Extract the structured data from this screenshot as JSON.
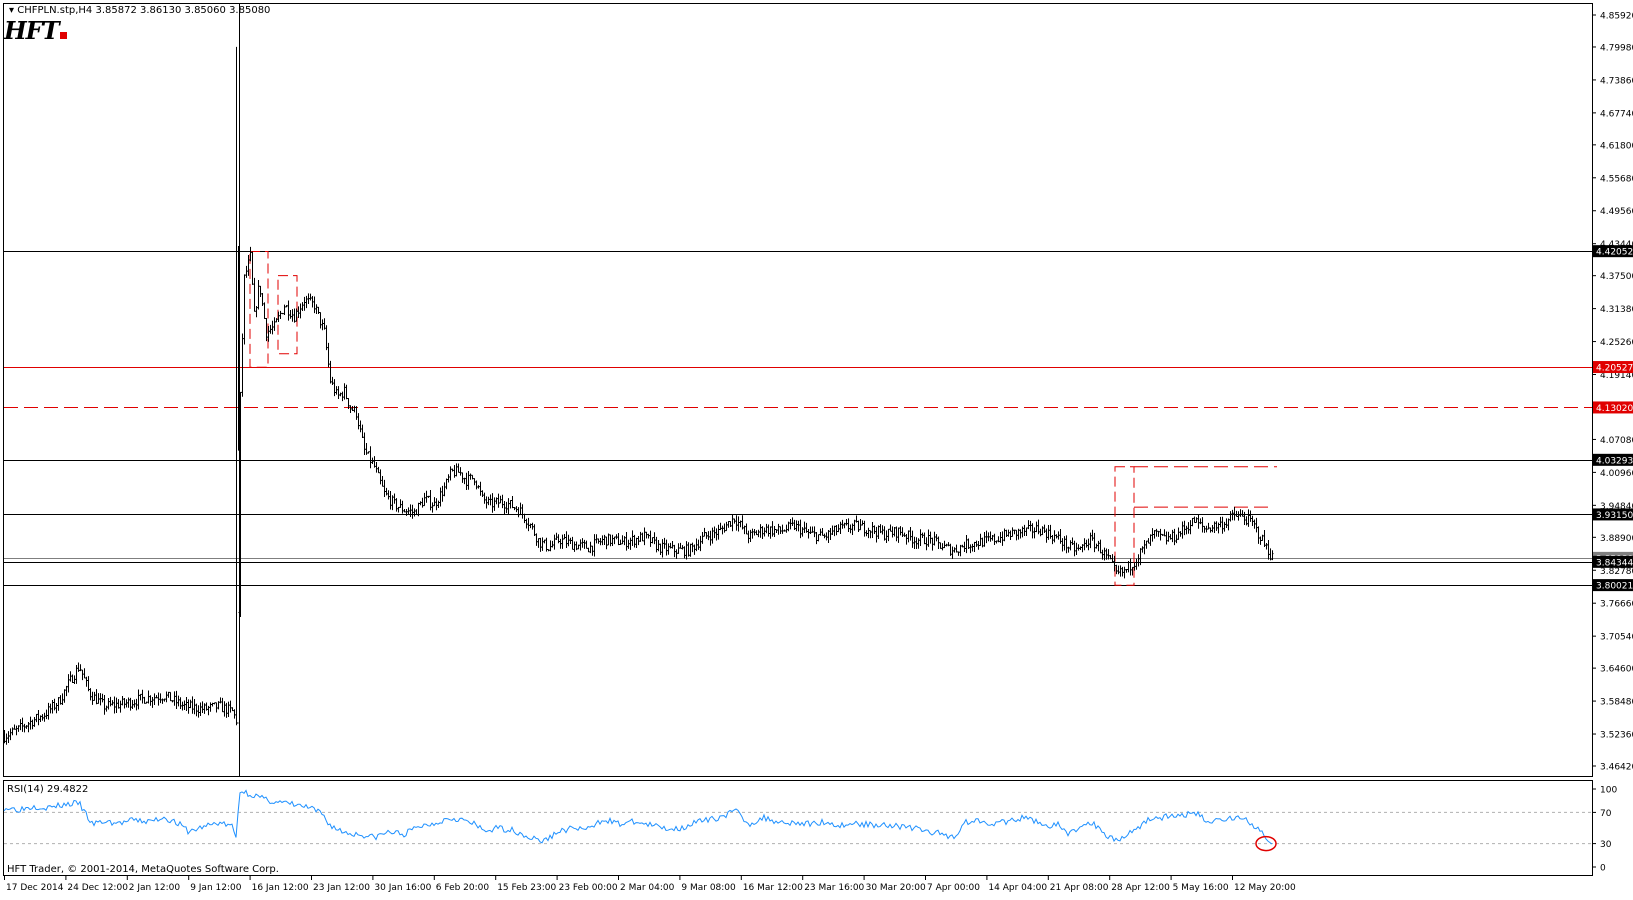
{
  "header": {
    "menu_arrow": "triangle-down-icon",
    "symbol": "CHFPLN.stp,H4",
    "ohlc": "3.85872 3.86130 3.85060 3.85080"
  },
  "logo": {
    "text": "HFT"
  },
  "colors": {
    "candle": "#000000",
    "level_red": "#e00000",
    "level_black": "#000000",
    "rsi_line": "#1e90ff",
    "label_black_bg": "#000000",
    "label_red_bg": "#e00000",
    "label_gray_bg": "#7f7f7f"
  },
  "rsi_panel": {
    "label": "RSI(14) 29.4822",
    "scale_labels": [
      "100",
      "70",
      "30",
      "0"
    ]
  },
  "footer": {
    "copyright": "HFT Trader, © 2001-2014, MetaQuotes Software Corp."
  },
  "chart_data": {
    "type": "candlestick",
    "title": "CHFPLN.stp,H4",
    "ylim": [
      3.4642,
      4.8592
    ],
    "price_axis_labels": [
      "4.85920",
      "4.79980",
      "4.73860",
      "4.67740",
      "4.61800",
      "4.55680",
      "4.49560",
      "4.43440",
      "4.37500",
      "4.31380",
      "4.25260",
      "4.19140",
      "4.07080",
      "4.00960",
      "3.94840",
      "3.88900",
      "3.82780",
      "3.76660",
      "3.70540",
      "3.64600",
      "3.58480",
      "3.52360",
      "3.46420"
    ],
    "time_axis_labels": [
      "17 Dec 2014",
      "24 Dec 12:00",
      "2 Jan 12:00",
      "9 Jan 12:00",
      "16 Jan 12:00",
      "23 Jan 12:00",
      "30 Jan 16:00",
      "6 Feb 20:00",
      "15 Feb 23:00",
      "23 Feb 00:00",
      "2 Mar 04:00",
      "9 Mar 08:00",
      "16 Mar 12:00",
      "23 Mar 16:00",
      "30 Mar 20:00",
      "7 Apr 00:00",
      "14 Apr 04:00",
      "21 Apr 08:00",
      "28 Apr 12:00",
      "5 May 16:00",
      "12 May 20:00"
    ],
    "price_path": [
      [
        0,
        3.52
      ],
      [
        12,
        3.53
      ],
      [
        25,
        3.545
      ],
      [
        40,
        3.56
      ],
      [
        55,
        3.585
      ],
      [
        65,
        3.62
      ],
      [
        75,
        3.65
      ],
      [
        85,
        3.6
      ],
      [
        100,
        3.575
      ],
      [
        120,
        3.58
      ],
      [
        140,
        3.59
      ],
      [
        160,
        3.595
      ],
      [
        180,
        3.575
      ],
      [
        200,
        3.57
      ],
      [
        215,
        3.575
      ],
      [
        228,
        3.565
      ],
      [
        233,
        3.545
      ],
      [
        236,
        4.15
      ],
      [
        240,
        4.37
      ],
      [
        246,
        4.41
      ],
      [
        250,
        4.3
      ],
      [
        255,
        4.36
      ],
      [
        262,
        4.27
      ],
      [
        270,
        4.28
      ],
      [
        280,
        4.32
      ],
      [
        290,
        4.3
      ],
      [
        300,
        4.33
      ],
      [
        310,
        4.32
      ],
      [
        320,
        4.27
      ],
      [
        326,
        4.18
      ],
      [
        333,
        4.15
      ],
      [
        340,
        4.16
      ],
      [
        346,
        4.13
      ],
      [
        352,
        4.12
      ],
      [
        360,
        4.05
      ],
      [
        370,
        4.02
      ],
      [
        380,
        3.97
      ],
      [
        390,
        3.95
      ],
      [
        400,
        3.94
      ],
      [
        410,
        3.935
      ],
      [
        420,
        3.96
      ],
      [
        430,
        3.95
      ],
      [
        440,
        3.98
      ],
      [
        447,
        4.01
      ],
      [
        455,
        4.01
      ],
      [
        462,
        3.995
      ],
      [
        470,
        4.0
      ],
      [
        478,
        3.96
      ],
      [
        486,
        3.95
      ],
      [
        496,
        3.955
      ],
      [
        505,
        3.95
      ],
      [
        515,
        3.94
      ],
      [
        525,
        3.915
      ],
      [
        535,
        3.88
      ],
      [
        545,
        3.87
      ],
      [
        555,
        3.885
      ],
      [
        570,
        3.875
      ],
      [
        585,
        3.87
      ],
      [
        600,
        3.885
      ],
      [
        620,
        3.88
      ],
      [
        640,
        3.89
      ],
      [
        655,
        3.87
      ],
      [
        670,
        3.865
      ],
      [
        685,
        3.865
      ],
      [
        700,
        3.89
      ],
      [
        715,
        3.9
      ],
      [
        730,
        3.925
      ],
      [
        745,
        3.89
      ],
      [
        760,
        3.905
      ],
      [
        775,
        3.9
      ],
      [
        790,
        3.91
      ],
      [
        805,
        3.895
      ],
      [
        820,
        3.89
      ],
      [
        835,
        3.905
      ],
      [
        850,
        3.91
      ],
      [
        865,
        3.905
      ],
      [
        880,
        3.895
      ],
      [
        895,
        3.9
      ],
      [
        910,
        3.885
      ],
      [
        925,
        3.885
      ],
      [
        940,
        3.87
      ],
      [
        950,
        3.865
      ],
      [
        960,
        3.875
      ],
      [
        975,
        3.88
      ],
      [
        990,
        3.885
      ],
      [
        1005,
        3.895
      ],
      [
        1020,
        3.9
      ],
      [
        1035,
        3.905
      ],
      [
        1045,
        3.895
      ],
      [
        1055,
        3.885
      ],
      [
        1065,
        3.87
      ],
      [
        1075,
        3.865
      ],
      [
        1085,
        3.885
      ],
      [
        1095,
        3.87
      ],
      [
        1105,
        3.845
      ],
      [
        1112,
        3.82
      ],
      [
        1120,
        3.825
      ],
      [
        1130,
        3.845
      ],
      [
        1140,
        3.87
      ],
      [
        1150,
        3.895
      ],
      [
        1160,
        3.885
      ],
      [
        1170,
        3.89
      ],
      [
        1180,
        3.905
      ],
      [
        1190,
        3.92
      ],
      [
        1200,
        3.905
      ],
      [
        1210,
        3.91
      ],
      [
        1220,
        3.915
      ],
      [
        1230,
        3.93
      ],
      [
        1240,
        3.925
      ],
      [
        1248,
        3.915
      ],
      [
        1256,
        3.89
      ],
      [
        1262,
        3.87
      ],
      [
        1268,
        3.852
      ]
    ],
    "horizontal_levels": [
      {
        "price": 4.42052,
        "label": "4.42052",
        "style": "solid",
        "color": "black"
      },
      {
        "price": 4.20527,
        "label": "4.20527",
        "style": "solid",
        "color": "red"
      },
      {
        "price": 4.1302,
        "label": "4.13020",
        "style": "dashed",
        "color": "red"
      },
      {
        "price": 4.03293,
        "label": "4.03293",
        "style": "solid",
        "color": "black"
      },
      {
        "price": 3.9315,
        "label": "3.93150",
        "style": "solid",
        "color": "black"
      },
      {
        "price": 3.84344,
        "label": "3.84344",
        "style": "solid",
        "color": "black"
      },
      {
        "price": 3.80021,
        "label": "3.80021",
        "style": "solid",
        "color": "black"
      }
    ],
    "current_price": {
      "price": 3.8508,
      "label": "3.85080"
    },
    "rsi": {
      "period": 14,
      "last_value": 29.4822,
      "levels": [
        70,
        30
      ],
      "path": [
        [
          0,
          76
        ],
        [
          15,
          74
        ],
        [
          30,
          78
        ],
        [
          45,
          76
        ],
        [
          60,
          80
        ],
        [
          75,
          82
        ],
        [
          88,
          55
        ],
        [
          100,
          58
        ],
        [
          115,
          56
        ],
        [
          130,
          60
        ],
        [
          145,
          58
        ],
        [
          160,
          64
        ],
        [
          175,
          55
        ],
        [
          185,
          45
        ],
        [
          200,
          52
        ],
        [
          215,
          57
        ],
        [
          228,
          52
        ],
        [
          232,
          38
        ],
        [
          236,
          98
        ],
        [
          250,
          92
        ],
        [
          262,
          86
        ],
        [
          275,
          83
        ],
        [
          290,
          80
        ],
        [
          305,
          76
        ],
        [
          318,
          68
        ],
        [
          325,
          55
        ],
        [
          335,
          47
        ],
        [
          345,
          43
        ],
        [
          355,
          42
        ],
        [
          370,
          38
        ],
        [
          385,
          45
        ],
        [
          400,
          42
        ],
        [
          415,
          52
        ],
        [
          430,
          56
        ],
        [
          445,
          63
        ],
        [
          455,
          62
        ],
        [
          470,
          55
        ],
        [
          480,
          46
        ],
        [
          495,
          50
        ],
        [
          510,
          47
        ],
        [
          525,
          38
        ],
        [
          540,
          33
        ],
        [
          555,
          46
        ],
        [
          570,
          50
        ],
        [
          585,
          48
        ],
        [
          600,
          62
        ],
        [
          615,
          55
        ],
        [
          630,
          58
        ],
        [
          645,
          54
        ],
        [
          660,
          50
        ],
        [
          675,
          49
        ],
        [
          690,
          57
        ],
        [
          705,
          60
        ],
        [
          720,
          66
        ],
        [
          732,
          72
        ],
        [
          745,
          55
        ],
        [
          760,
          63
        ],
        [
          775,
          58
        ],
        [
          790,
          57
        ],
        [
          805,
          55
        ],
        [
          820,
          58
        ],
        [
          835,
          53
        ],
        [
          850,
          56
        ],
        [
          865,
          54
        ],
        [
          880,
          55
        ],
        [
          895,
          52
        ],
        [
          910,
          50
        ],
        [
          925,
          45
        ],
        [
          940,
          42
        ],
        [
          950,
          38
        ],
        [
          960,
          57
        ],
        [
          975,
          60
        ],
        [
          990,
          56
        ],
        [
          1005,
          58
        ],
        [
          1020,
          63
        ],
        [
          1035,
          58
        ],
        [
          1045,
          52
        ],
        [
          1055,
          54
        ],
        [
          1065,
          42
        ],
        [
          1075,
          50
        ],
        [
          1085,
          58
        ],
        [
          1095,
          50
        ],
        [
          1105,
          38
        ],
        [
          1115,
          35
        ],
        [
          1130,
          47
        ],
        [
          1145,
          62
        ],
        [
          1160,
          64
        ],
        [
          1175,
          65
        ],
        [
          1190,
          70
        ],
        [
          1205,
          58
        ],
        [
          1220,
          62
        ],
        [
          1235,
          64
        ],
        [
          1245,
          58
        ],
        [
          1255,
          48
        ],
        [
          1262,
          35
        ],
        [
          1268,
          29.48
        ]
      ]
    },
    "annotations": [
      {
        "type": "dashed_rect",
        "color": "red",
        "from_x": 246,
        "to_x": 264,
        "price_top": 4.42,
        "price_bottom": 4.205
      },
      {
        "type": "dashed_rect",
        "color": "red",
        "from_x": 274,
        "to_x": 293,
        "price_top": 4.375,
        "price_bottom": 4.23
      },
      {
        "type": "dashed_rect",
        "color": "red",
        "from_x": 1111,
        "to_x": 1130,
        "price_top": 4.02,
        "price_bottom": 3.8
      },
      {
        "type": "dashed_line",
        "color": "red",
        "from_x": 1130,
        "to_x": 1273,
        "price": 4.02
      },
      {
        "type": "dashed_line",
        "color": "red",
        "from_x": 1130,
        "to_x": 1268,
        "price": 3.945
      },
      {
        "type": "vertical_line",
        "color": "black",
        "x": 235
      },
      {
        "type": "circle",
        "color": "red",
        "panel": "rsi",
        "x": 1262,
        "rsi": 30
      }
    ]
  }
}
